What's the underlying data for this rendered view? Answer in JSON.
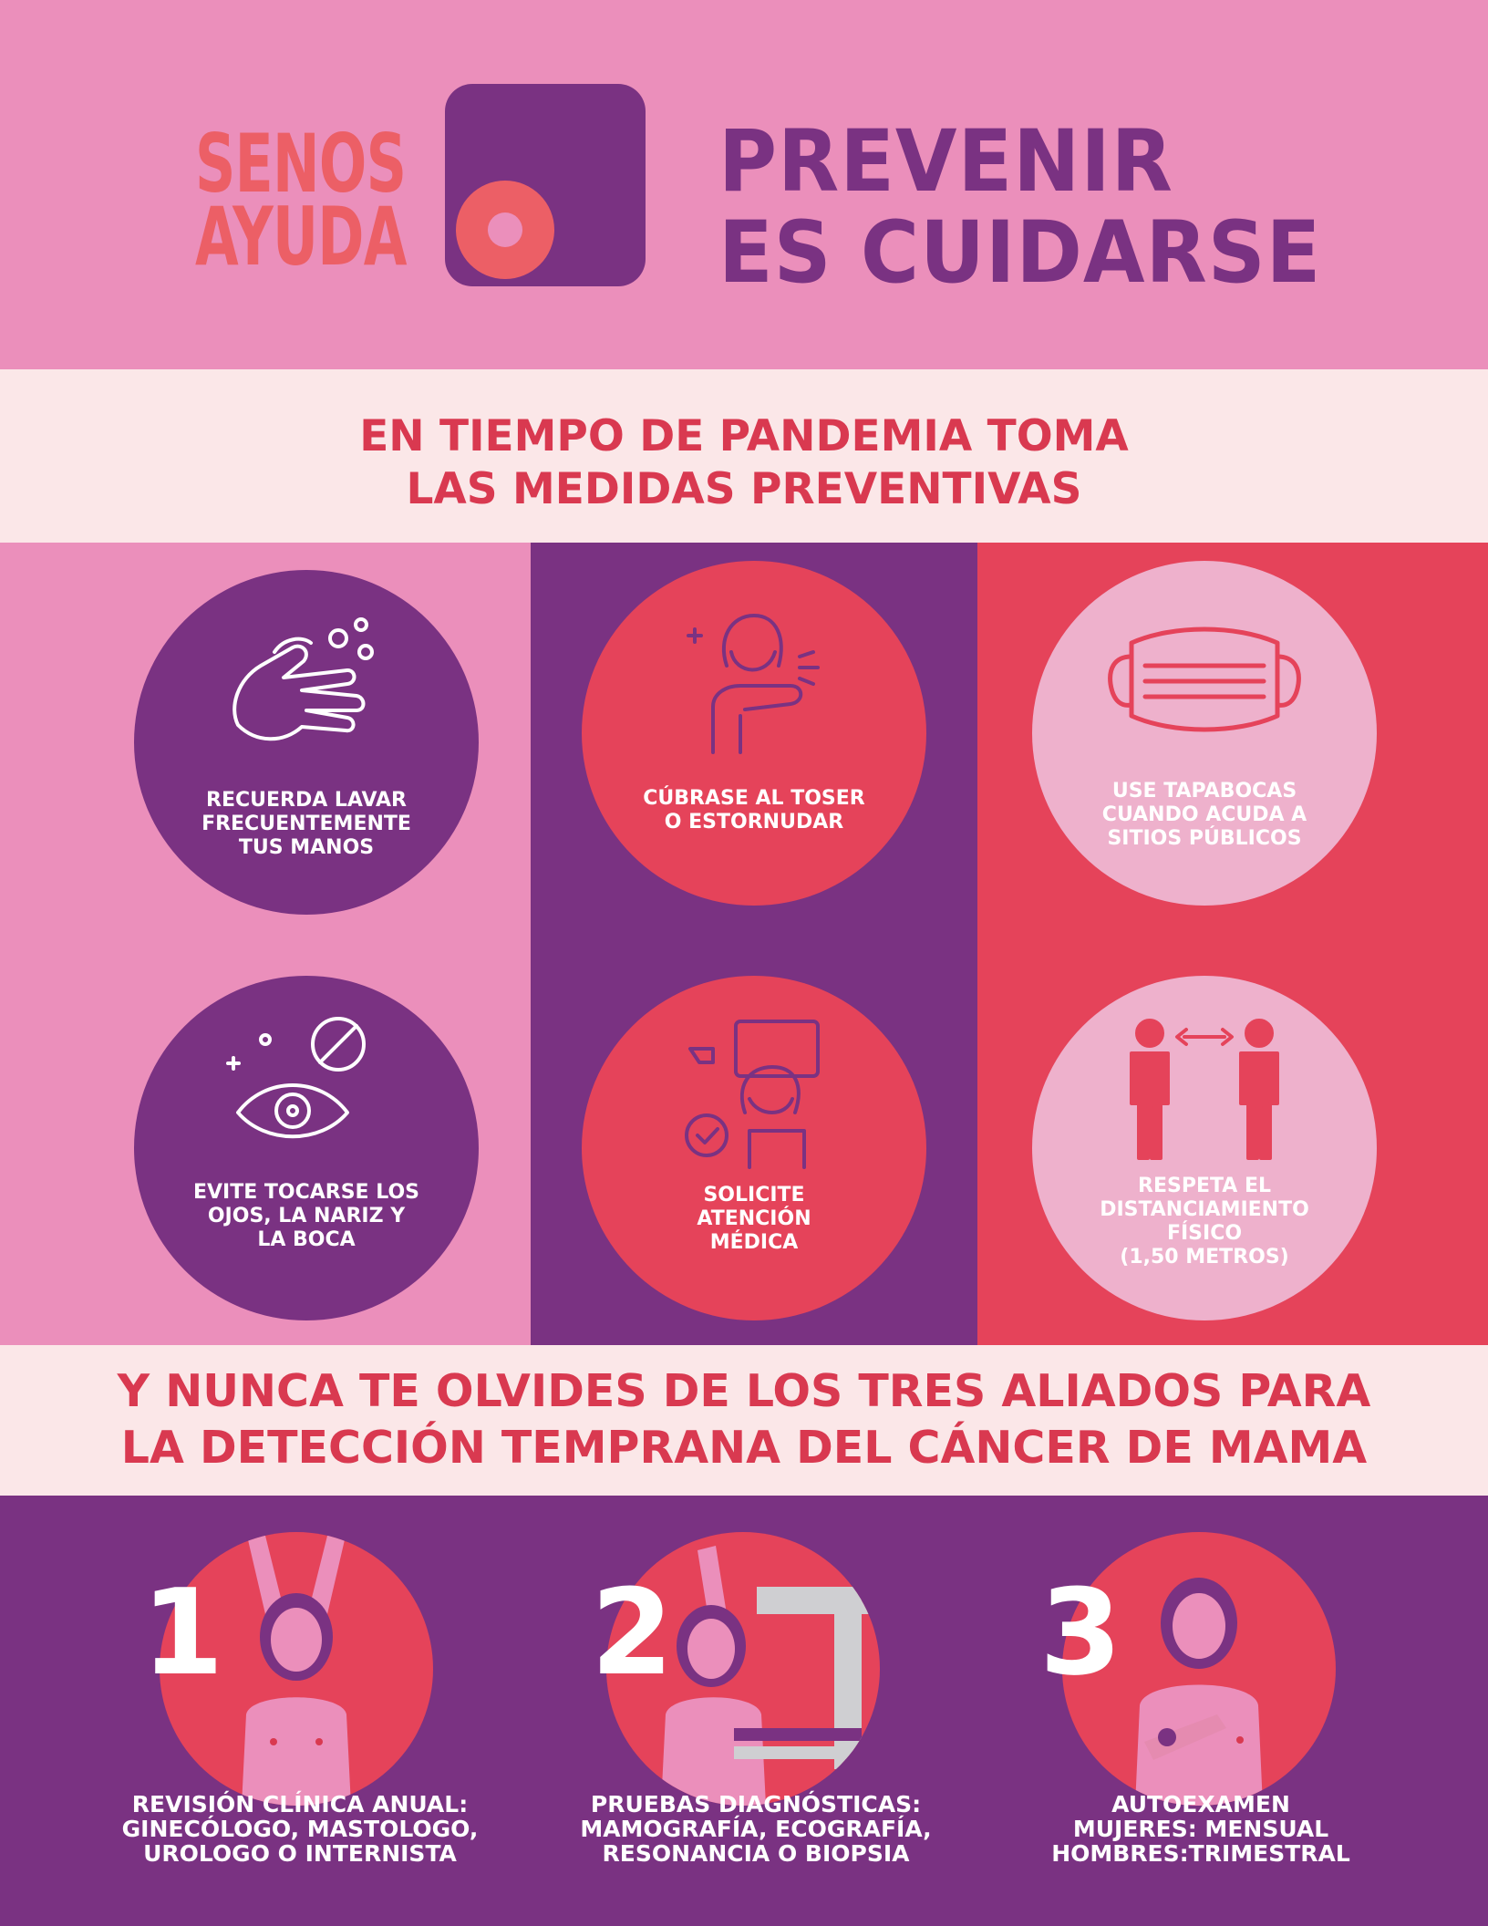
{
  "header": {
    "logo_line1": "SENOS",
    "logo_line2": "AYUDA",
    "slogan_line1": "PREVENIR",
    "slogan_line2": "ES CUIDARSE"
  },
  "band1": {
    "line1": "EN TIEMPO DE PANDEMIA TOMA",
    "line2": "LAS MEDIDAS PREVENTIVAS"
  },
  "measures": [
    {
      "lines": [
        "RECUERDA LAVAR",
        "FRECUENTEMENTE",
        "TUS MANOS"
      ],
      "icon": "hand-washing-icon"
    },
    {
      "lines": [
        "CÚBRASE AL TOSER",
        "O ESTORNUDAR"
      ],
      "icon": "cough-elbow-icon"
    },
    {
      "lines": [
        "USE TAPABOCAS",
        "CUANDO ACUDA A",
        "SITIOS PÚBLICOS"
      ],
      "icon": "face-mask-icon"
    },
    {
      "lines": [
        "EVITE TOCARSE LOS",
        "OJOS, LA NARIZ Y",
        "LA BOCA"
      ],
      "icon": "no-touch-eye-icon"
    },
    {
      "lines": [
        "SOLICITE",
        "ATENCIÓN",
        "MÉDICA"
      ],
      "icon": "medical-check-icon"
    },
    {
      "lines": [
        "RESPETA EL",
        "DISTANCIAMIENTO",
        "FÍSICO",
        "(1,50 METROS)"
      ],
      "icon": "distance-people-icon"
    }
  ],
  "band2": {
    "line1": "Y NUNCA TE OLVIDES DE LOS TRES ALIADOS PARA",
    "line2": "LA DETECCIÓN TEMPRANA DEL CÁNCER DE MAMA"
  },
  "allies": [
    {
      "number": "1",
      "lines": [
        "REVISIÓN CLÍNICA ANUAL:",
        "GINECÓLOGO, MASTOLOGO,",
        "UROLOGO O INTERNISTA"
      ],
      "icon": "clinical-exam-woman-icon"
    },
    {
      "number": "2",
      "lines": [
        "PRUEBAS DIAGNÓSTICAS:",
        "MAMOGRAFÍA, ECOGRAFÍA,",
        "RESONANCIA O BIOPSIA"
      ],
      "icon": "mammography-woman-icon"
    },
    {
      "number": "3",
      "lines": [
        "AUTOEXAMEN",
        "MUJERES: MENSUAL",
        "HOMBRES:TRIMESTRAL"
      ],
      "icon": "self-exam-woman-icon"
    }
  ],
  "colors": {
    "pink": "#eb8fbb",
    "purple": "#7a3282",
    "red": "#e5435a",
    "light": "#fbe7e8",
    "coral": "#ec5f66"
  }
}
